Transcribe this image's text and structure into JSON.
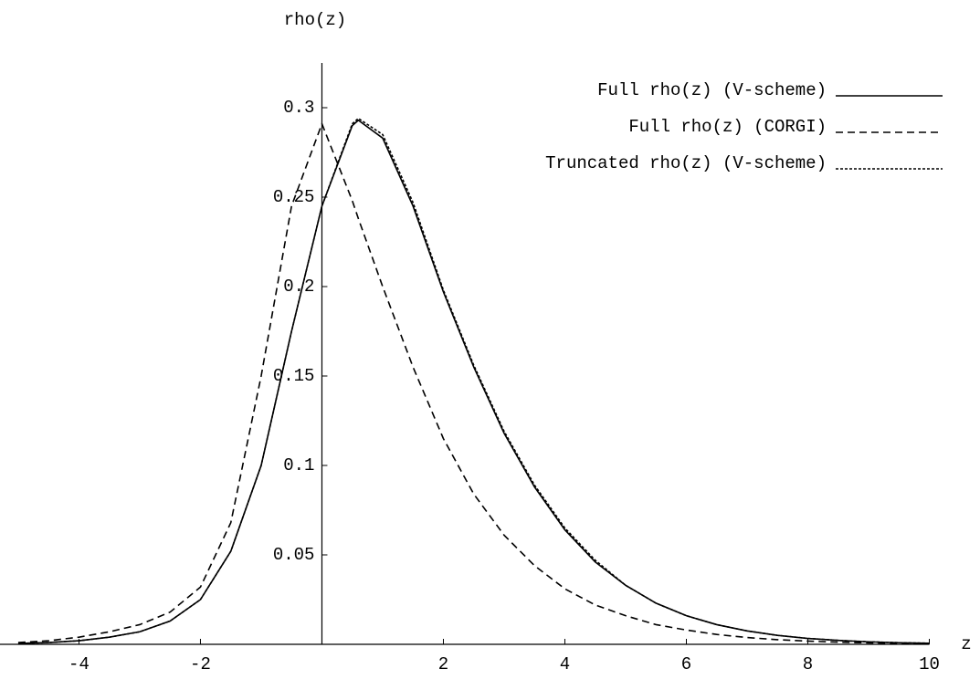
{
  "chart_data": {
    "type": "line",
    "xlabel": "z",
    "ylabel": "rho(z)",
    "x": [
      -5,
      -4.5,
      -4,
      -3.5,
      -3,
      -2.5,
      -2,
      -1.5,
      -1,
      -0.5,
      0,
      0.5,
      0.6,
      1,
      1.5,
      2,
      2.5,
      3,
      3.5,
      4,
      4.5,
      5,
      5.5,
      6,
      6.5,
      7,
      7.5,
      8,
      8.5,
      9,
      9.5,
      10
    ],
    "series": [
      {
        "name": "Full rho(z) (V-scheme)",
        "color": "#000000",
        "style": "solid",
        "values": [
          0.0005,
          0.001,
          0.002,
          0.004,
          0.007,
          0.013,
          0.025,
          0.052,
          0.1,
          0.175,
          0.245,
          0.29,
          0.293,
          0.283,
          0.245,
          0.197,
          0.155,
          0.118,
          0.088,
          0.064,
          0.046,
          0.033,
          0.023,
          0.016,
          0.011,
          0.0075,
          0.005,
          0.0033,
          0.0022,
          0.0014,
          0.0009,
          0.0006
        ]
      },
      {
        "name": "Full rho(z) (CORGI)",
        "color": "#000000",
        "style": "dashed",
        "values": [
          0.001,
          0.002,
          0.004,
          0.007,
          0.011,
          0.018,
          0.032,
          0.068,
          0.15,
          0.245,
          0.291,
          0.248,
          0.238,
          0.2,
          0.155,
          0.115,
          0.084,
          0.061,
          0.044,
          0.031,
          0.022,
          0.016,
          0.011,
          0.008,
          0.0055,
          0.0038,
          0.0026,
          0.0018,
          0.0012,
          0.0008,
          0.0005,
          0.0003
        ]
      },
      {
        "name": "Truncated rho(z) (V-scheme)",
        "color": "#000000",
        "style": "dotted",
        "values": [
          0.0005,
          0.001,
          0.002,
          0.004,
          0.007,
          0.013,
          0.025,
          0.052,
          0.1,
          0.175,
          0.245,
          0.291,
          0.294,
          0.285,
          0.247,
          0.198,
          0.156,
          0.119,
          0.089,
          0.065,
          0.047,
          0.033,
          0.023,
          0.016,
          0.011,
          0.0075,
          0.005,
          0.0033,
          0.0022,
          0.0014,
          0.0009,
          0.0006
        ]
      }
    ],
    "xlim": [
      -5.3,
      10
    ],
    "ylim": [
      0,
      0.325
    ],
    "xticks": [
      -4,
      -2,
      2,
      4,
      6,
      8,
      10
    ],
    "yticks": [
      0.05,
      0.1,
      0.15,
      0.2,
      0.25,
      0.3
    ],
    "legend": "upper right"
  }
}
